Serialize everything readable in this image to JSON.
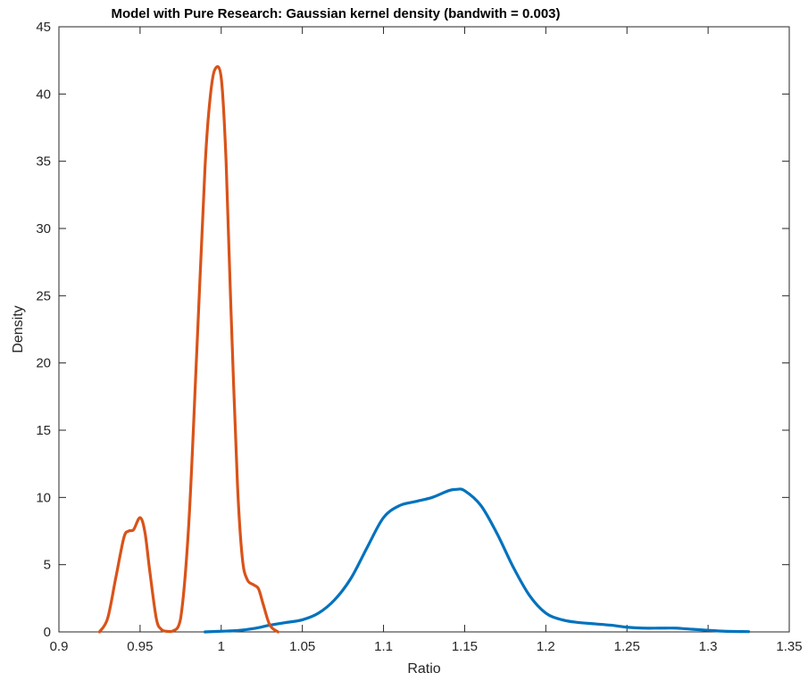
{
  "chart_data": {
    "type": "line",
    "title": "Model with Pure Research: Gaussian kernel density (bandwith = 0.003)",
    "xlabel": "Ratio",
    "ylabel": "Density",
    "xlim": [
      0.9,
      1.35
    ],
    "ylim": [
      0,
      45
    ],
    "xticks": [
      0.9,
      0.95,
      1,
      1.05,
      1.1,
      1.15,
      1.2,
      1.25,
      1.3,
      1.35
    ],
    "xtick_labels": [
      "0.9",
      "0.95",
      "1",
      "1.05",
      "1.1",
      "1.15",
      "1.2",
      "1.25",
      "1.3",
      "1.35"
    ],
    "yticks": [
      0,
      5,
      10,
      15,
      20,
      25,
      30,
      35,
      40,
      45
    ],
    "ytick_labels": [
      "0",
      "5",
      "10",
      "15",
      "20",
      "25",
      "30",
      "35",
      "40",
      "45"
    ],
    "grid": false,
    "box": true,
    "series": [
      {
        "color": "#0072BD",
        "x": [
          0.99,
          1.0,
          1.01,
          1.02,
          1.03,
          1.04,
          1.05,
          1.06,
          1.07,
          1.08,
          1.09,
          1.1,
          1.11,
          1.12,
          1.13,
          1.14,
          1.145,
          1.15,
          1.16,
          1.17,
          1.18,
          1.19,
          1.2,
          1.21,
          1.22,
          1.23,
          1.24,
          1.25,
          1.26,
          1.27,
          1.28,
          1.29,
          1.3,
          1.31,
          1.325
        ],
        "y": [
          0.0,
          0.05,
          0.1,
          0.25,
          0.5,
          0.7,
          0.9,
          1.4,
          2.4,
          4.0,
          6.3,
          8.5,
          9.4,
          9.7,
          10.0,
          10.5,
          10.6,
          10.5,
          9.4,
          7.3,
          4.8,
          2.7,
          1.4,
          0.9,
          0.7,
          0.6,
          0.5,
          0.35,
          0.28,
          0.28,
          0.28,
          0.2,
          0.12,
          0.05,
          0.02
        ]
      },
      {
        "color": "#D95319",
        "x": [
          0.925,
          0.93,
          0.935,
          0.94,
          0.943,
          0.946,
          0.95,
          0.953,
          0.956,
          0.96,
          0.963,
          0.966,
          0.97,
          0.975,
          0.98,
          0.985,
          0.99,
          0.993,
          0.996,
          1.0,
          1.003,
          1.006,
          1.01,
          1.013,
          1.016,
          1.02,
          1.023,
          1.026,
          1.03,
          1.035
        ],
        "y": [
          0.0,
          1.0,
          4.0,
          7.0,
          7.5,
          7.6,
          8.5,
          7.4,
          4.5,
          1.0,
          0.2,
          0.05,
          0.05,
          1.0,
          8.0,
          21.0,
          34.5,
          39.5,
          41.8,
          41.2,
          35.0,
          24.0,
          11.0,
          5.5,
          3.9,
          3.5,
          3.2,
          2.0,
          0.5,
          0.0
        ]
      }
    ]
  }
}
